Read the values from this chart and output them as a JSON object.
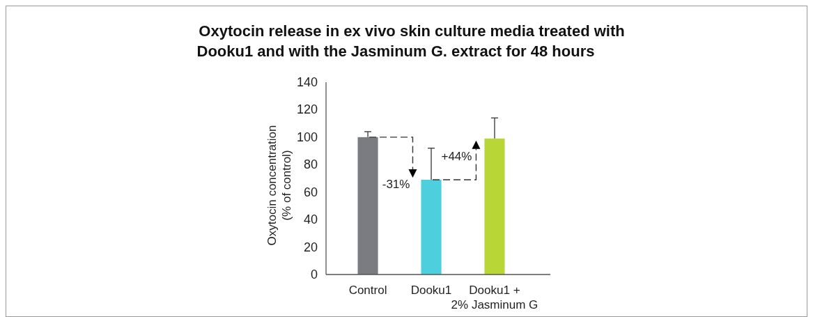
{
  "chart_data": {
    "type": "bar",
    "title": "Oxytocin release in ex vivo skin culture media treated with\nDooku1 and with the Jasminum G. extract for 48 hours",
    "ylabel": "Oxytocin concentration\n(% of control)",
    "categories": [
      "Control",
      "Dooku1",
      "Dooku1 +\n2% Jasminum G"
    ],
    "values": [
      100,
      69,
      99
    ],
    "colors": [
      "#7a7c82",
      "#4ecfde",
      "#b8d636"
    ],
    "errors": [
      [
        100,
        104
      ],
      [
        69,
        92
      ],
      [
        99,
        114
      ]
    ],
    "ylim": [
      0,
      140
    ],
    "yticks": [
      0,
      20,
      40,
      60,
      80,
      100,
      120,
      140
    ],
    "grid": false,
    "annotations": [
      {
        "text": "-31%",
        "x": "Dooku1",
        "y": 69
      },
      {
        "text": "+44%",
        "x": "Dooku1 +\n2% Jasminum G",
        "y": 99
      }
    ]
  }
}
